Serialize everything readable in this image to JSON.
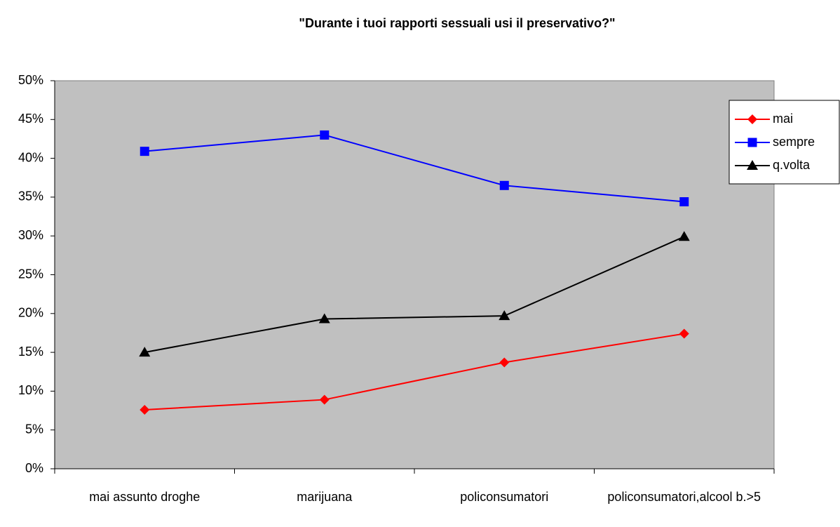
{
  "chart_data": {
    "type": "line",
    "title": "\"Durante i tuoi rapporti sessuali usi il preservativo?\"",
    "categories": [
      "mai assunto droghe",
      "marijuana",
      "policonsumatori",
      "policonsumatori,alcool b.>5"
    ],
    "series": [
      {
        "name": "mai",
        "color": "#ff0000",
        "marker": "diamond",
        "values": [
          7.6,
          8.9,
          13.7,
          17.4
        ]
      },
      {
        "name": "sempre",
        "color": "#0000ff",
        "marker": "square",
        "values": [
          40.9,
          43.0,
          36.5,
          34.4
        ]
      },
      {
        "name": "q.volta",
        "color": "#000000",
        "marker": "triangle",
        "values": [
          15.0,
          19.3,
          19.7,
          29.9
        ]
      }
    ],
    "ylim": [
      0,
      50
    ],
    "yticks": [
      {
        "value": 0,
        "label": "0%"
      },
      {
        "value": 5,
        "label": "5%"
      },
      {
        "value": 10,
        "label": "10%"
      },
      {
        "value": 15,
        "label": "15%"
      },
      {
        "value": 20,
        "label": "20%"
      },
      {
        "value": 25,
        "label": "25%"
      },
      {
        "value": 30,
        "label": "30%"
      },
      {
        "value": 35,
        "label": "35%"
      },
      {
        "value": 40,
        "label": "40%"
      },
      {
        "value": 45,
        "label": "45%"
      },
      {
        "value": 50,
        "label": "50%"
      }
    ],
    "legend": "right",
    "plot_background": "#c0c0c0"
  }
}
